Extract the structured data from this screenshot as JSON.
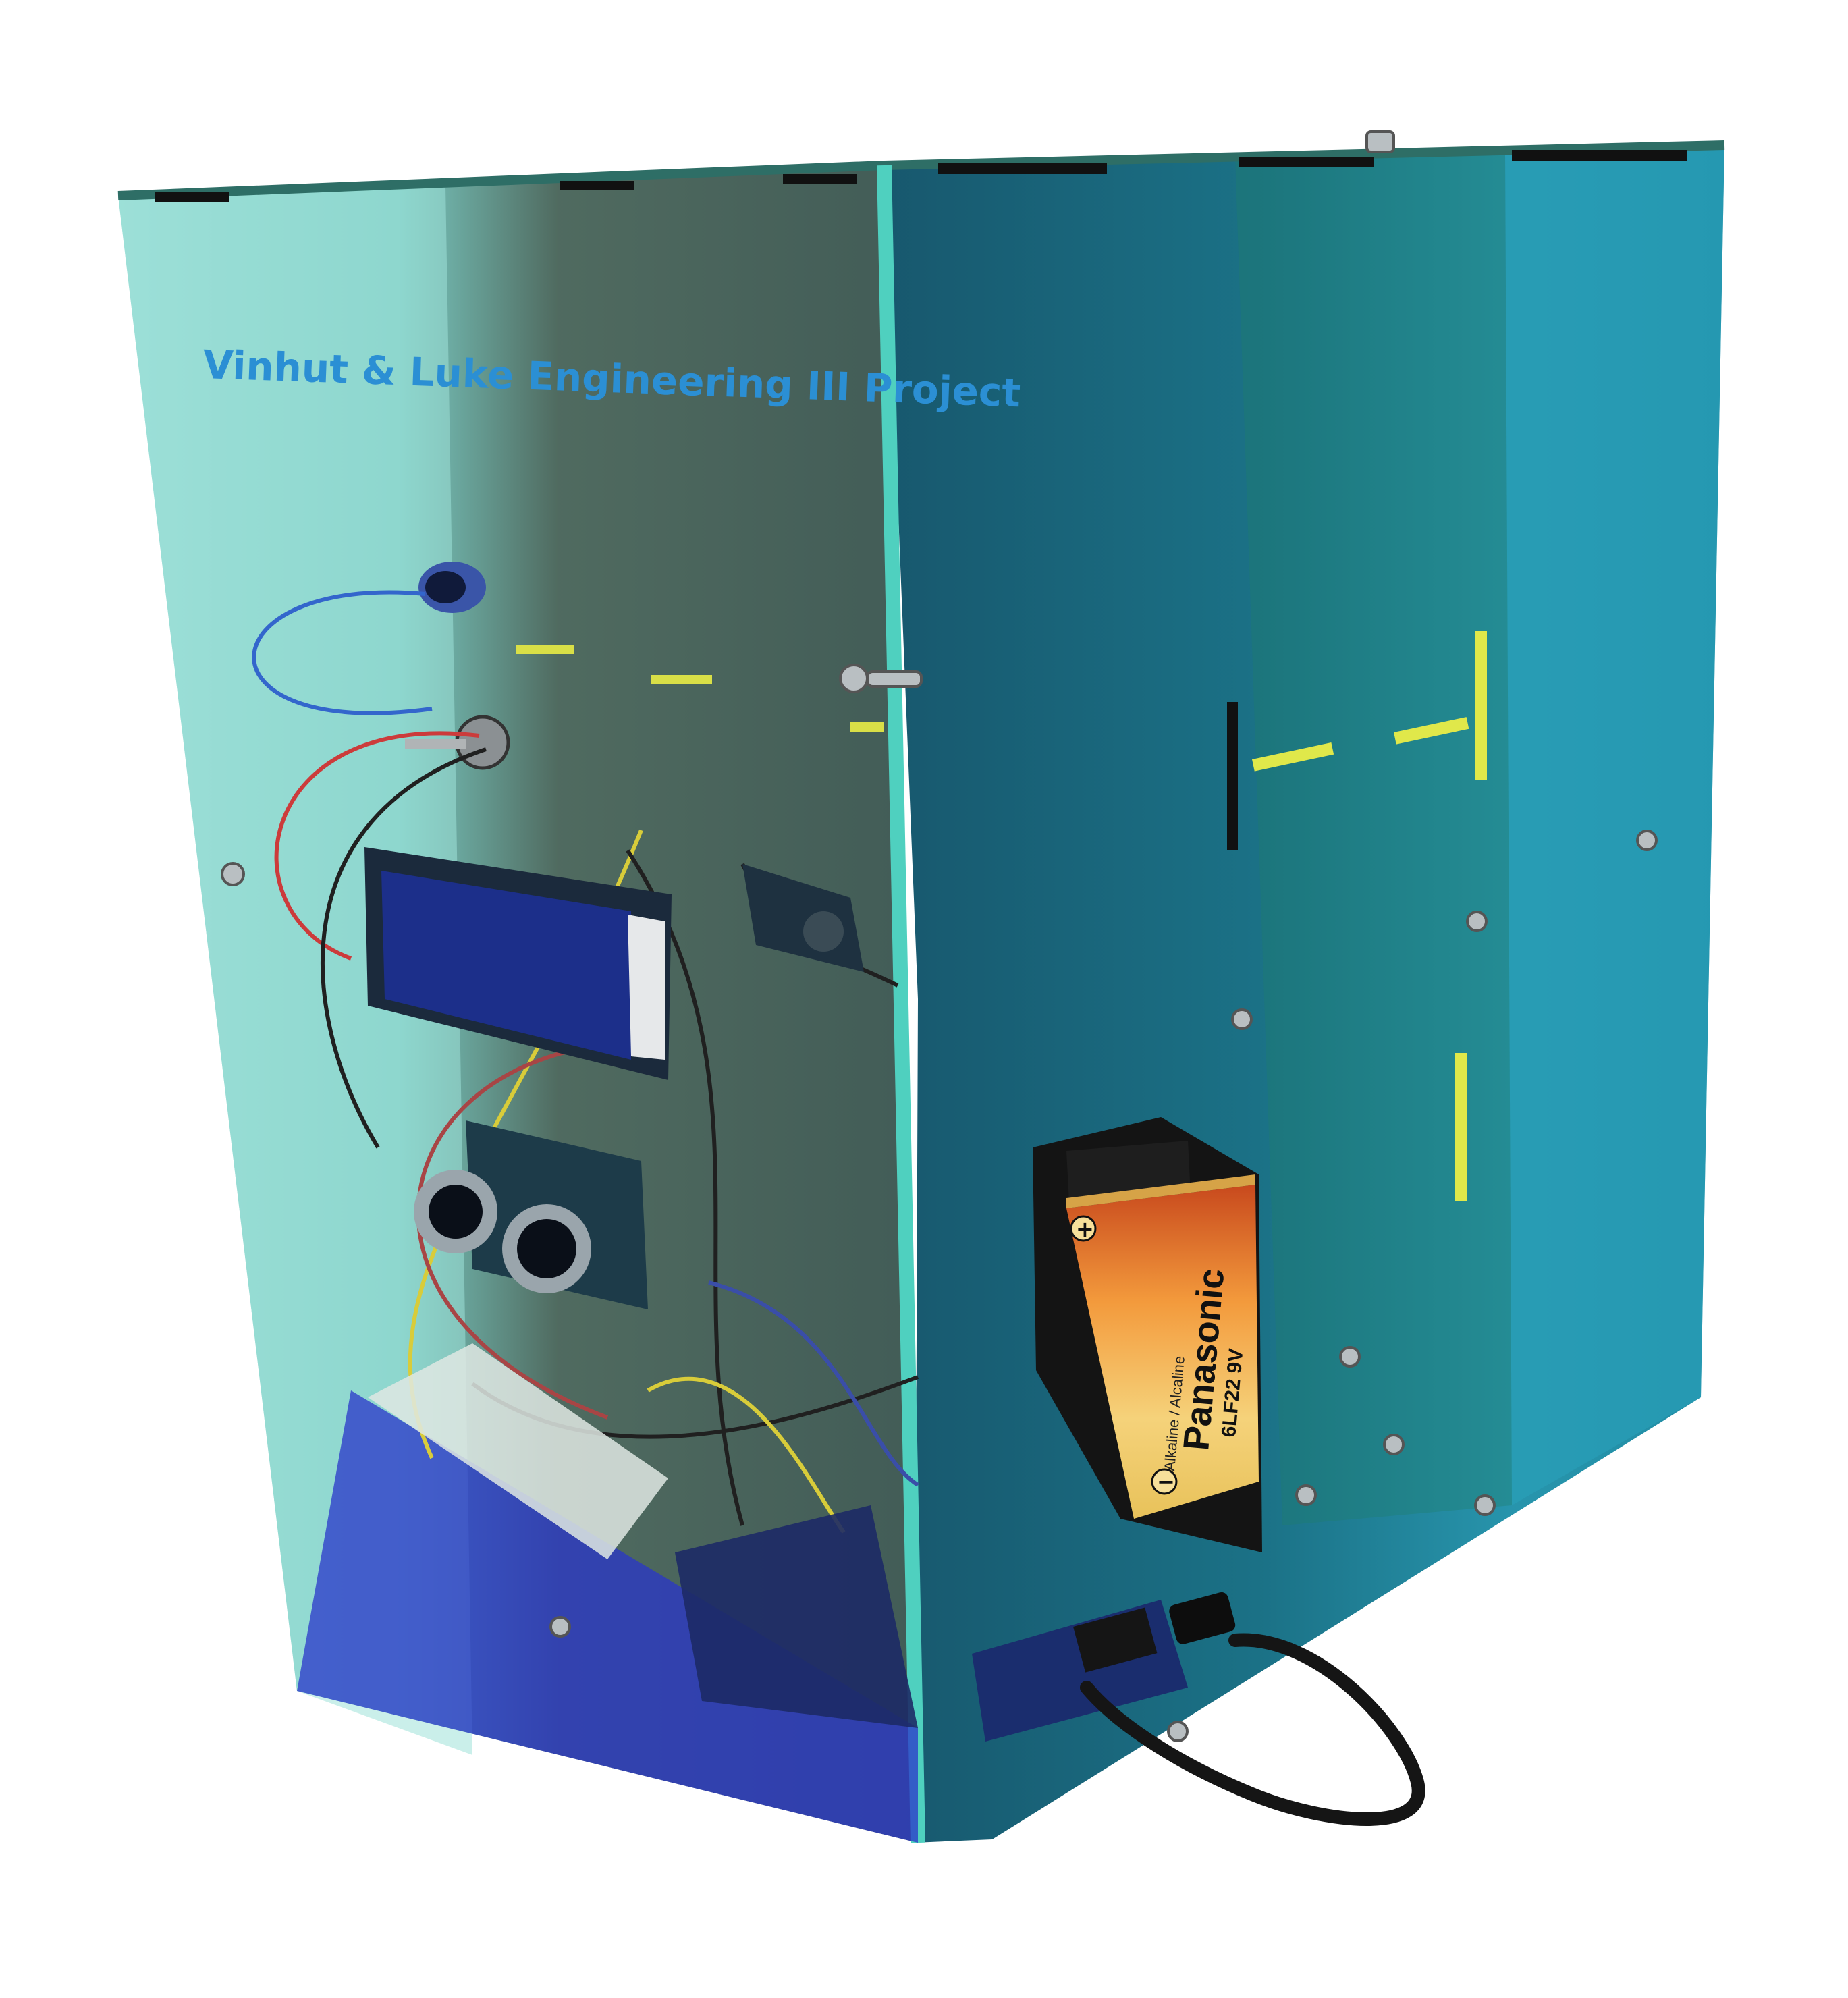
{
  "photo": {
    "engraving": "Vinhut & Luke Engineering III Project",
    "battery": {
      "brand": "Panasonic",
      "model": "6LF22 9V",
      "type": "Alkaline / Alcaline",
      "plus_sign": "+",
      "minus_sign": "−"
    }
  },
  "colors": {
    "background": "#ffffff",
    "front_acrylic": "#5cc9bf",
    "side_acrylic": "#0c6f86",
    "engraving": "#2b8fd4",
    "lcd_screen": "#1c2f8a",
    "yellow_marks": "#e0e84a",
    "base_blue": "#2a35c9"
  }
}
